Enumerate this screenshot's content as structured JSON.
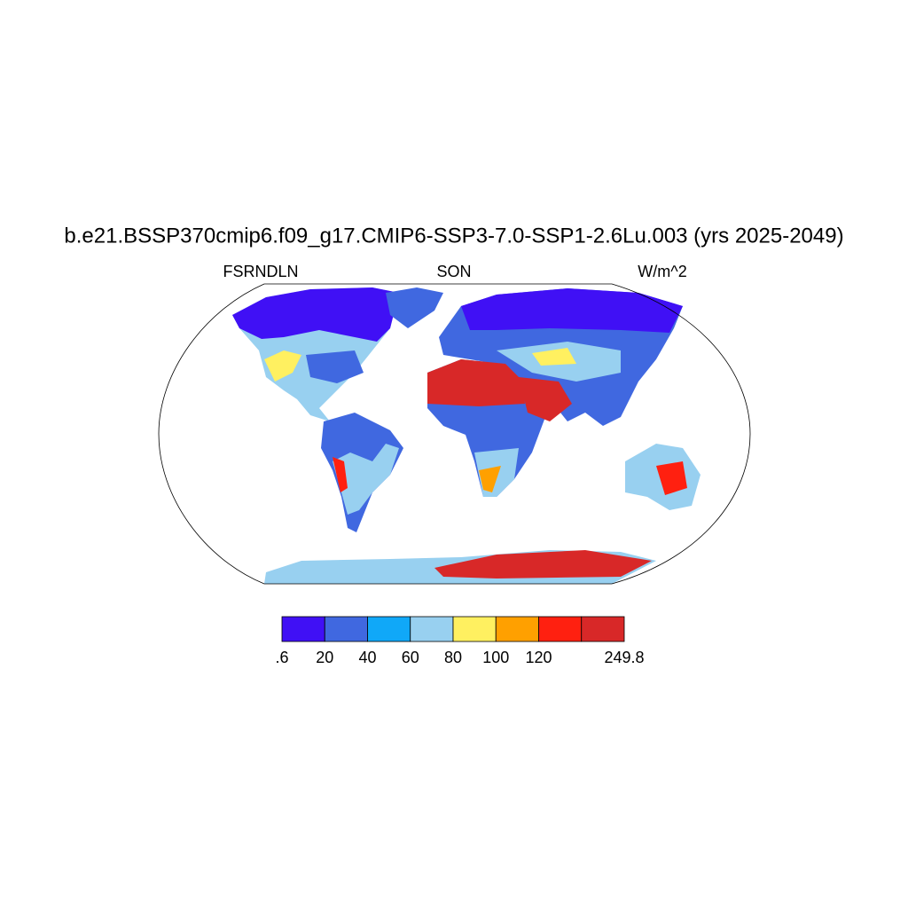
{
  "title": "b.e21.BSSP370cmip6.f09_g17.CMIP6-SSP3-7.0-SSP1-2.6Lu.003 (yrs 2025-2049)",
  "left_label": "FSRNDLN",
  "center_label": "SON",
  "right_label": "W/m^2",
  "colorbar": {
    "boundaries": [
      {
        "value": 0.6,
        "label": ".6"
      },
      20,
      40,
      60,
      80,
      100,
      120,
      null,
      249.8
    ],
    "colors": [
      "#4010f5",
      "#4068e0",
      "#10a8f8",
      "#98d0f0",
      "#fff060",
      "#ffa000",
      "#ff2010",
      "#d82828"
    ]
  }
}
